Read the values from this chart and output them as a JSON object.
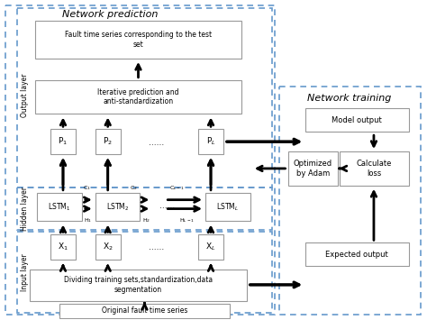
{
  "bg_color": "#ffffff",
  "dashed_color": "#6699cc",
  "box_edge_color": "#999999",
  "arrow_color": "#000000",
  "title_network_prediction": "Network prediction",
  "title_network_training": "Network training",
  "label_output_layer": "Output layer",
  "label_hidden_layer": "Hidden layer",
  "label_input_layer": "Input layer",
  "label_fault_output": "Fault time series corresponding to the test\nset",
  "label_iterative": "Iterative prediction and\nanti-standardization",
  "label_dividing": "Dividing training sets,standardization,data\nsegmentation",
  "label_original": "Original fault time series",
  "label_model_output": "Model output",
  "label_calculate_loss": "Calculate\nloss",
  "label_optimized": "Optimized\nby Adam",
  "label_expected": "Expected output"
}
